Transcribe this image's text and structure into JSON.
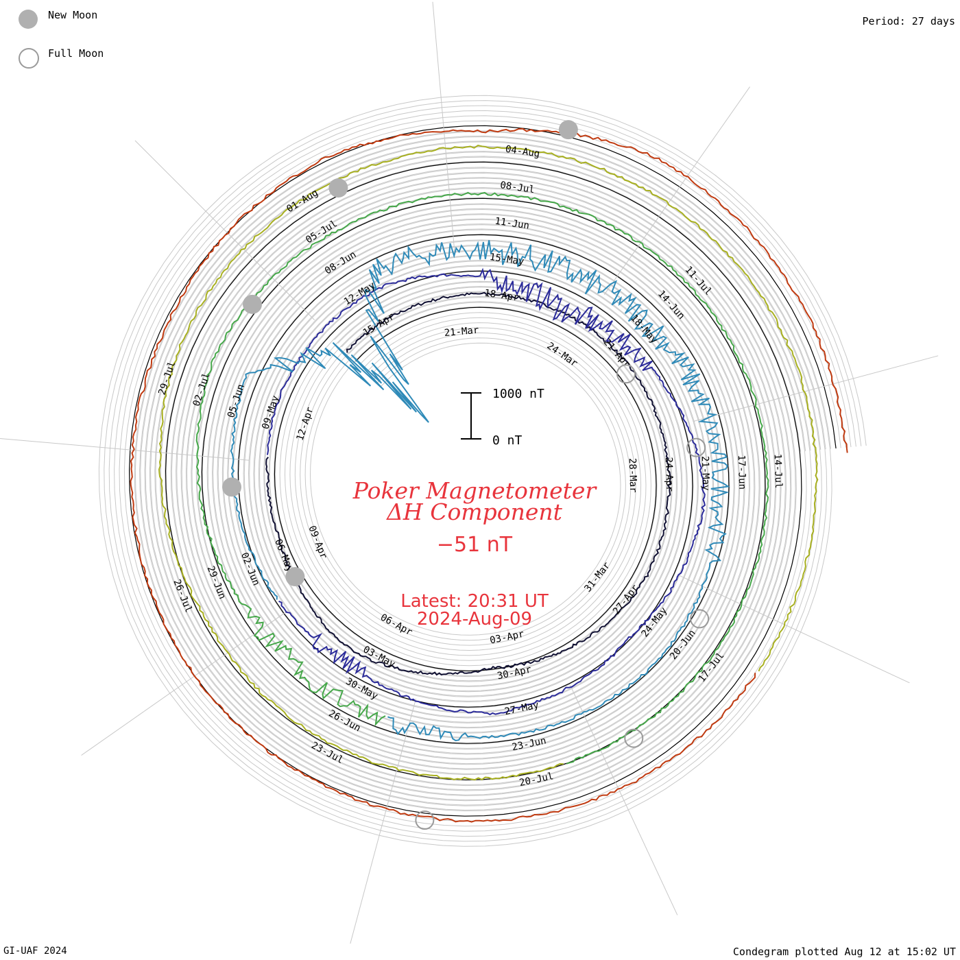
{
  "legend": {
    "new_moon_label": "New Moon",
    "full_moon_label": "Full Moon",
    "new_moon_color": "#b0b0b0",
    "full_moon_color": "#9a9a9a"
  },
  "period_label": "Period: 27 days",
  "footer_left": "GI-UAF 2024",
  "footer_right": "Condegram plotted Aug 12 at 15:02 UT",
  "scale_bar": {
    "top_label": "1000 nT",
    "bottom_label": "0 nT",
    "value_nT": 1000
  },
  "title": {
    "line1": "Poker Magnetometer",
    "line2": "ΔH Component",
    "value": "−51 nT",
    "latest_line1": "Latest: 20:31 UT",
    "latest_line2": "2024-Aug-09",
    "color": "#e8343c"
  },
  "chart_data": {
    "type": "line",
    "description_units": "nT",
    "period_days": 27,
    "start_date": "2024-03-18",
    "end_date": "2024-08-09",
    "series": [
      {
        "color": "#111133",
        "date_labels": [
          "21-Mar",
          "24-Mar",
          "28-Mar",
          "31-Mar",
          "03-Apr",
          "06-Apr",
          "09-Apr",
          "12-Apr"
        ],
        "values": [
          {
            "date": "2024-03-20",
            "dH": 20
          },
          {
            "date": "2024-03-24",
            "dH": 40
          },
          {
            "date": "2024-03-30",
            "dH": 0
          },
          {
            "date": "2024-04-01",
            "dH": -150
          },
          {
            "date": "2024-04-03",
            "dH": -300
          },
          {
            "date": "2024-04-06",
            "dH": 80
          },
          {
            "date": "2024-04-09",
            "dH": -150
          },
          {
            "date": "2024-04-12",
            "dH": -50
          }
        ]
      },
      {
        "color": "#2b2b9a",
        "date_labels": [
          "15-Apr",
          "18-Apr",
          "21-Apr",
          "24-Apr",
          "27-Apr",
          "30-Apr",
          "03-May",
          "06-May",
          "09-May"
        ],
        "values": [
          {
            "date": "2024-04-15",
            "dH": -100
          },
          {
            "date": "2024-04-19",
            "dH": -700
          },
          {
            "date": "2024-04-24",
            "dH": 0
          },
          {
            "date": "2024-04-27",
            "dH": -300
          },
          {
            "date": "2024-04-30",
            "dH": -100
          },
          {
            "date": "2024-05-03",
            "dH": -450
          },
          {
            "date": "2024-05-06",
            "dH": -250
          },
          {
            "date": "2024-05-09",
            "dH": 0
          }
        ]
      },
      {
        "color": "#2f8ab8",
        "date_labels": [
          "12-May",
          "15-May",
          "18-May",
          "21-May",
          "24-May",
          "27-May",
          "30-May",
          "02-Jun",
          "05-Jun"
        ],
        "values": [
          {
            "date": "2024-05-10",
            "dH": -1400
          },
          {
            "date": "2024-05-11",
            "dH": -2800
          },
          {
            "date": "2024-05-12",
            "dH": -500
          },
          {
            "date": "2024-05-16",
            "dH": -700
          },
          {
            "date": "2024-05-24",
            "dH": -300
          },
          {
            "date": "2024-05-31",
            "dH": -500
          },
          {
            "date": "2024-06-05",
            "dH": 0
          }
        ]
      },
      {
        "color": "#46a84a",
        "date_labels": [
          "08-Jun",
          "11-Jun",
          "14-Jun",
          "17-Jun",
          "20-Jun",
          "23-Jun",
          "26-Jun",
          "29-Jun",
          "02-Jul"
        ],
        "values": [
          {
            "date": "2024-06-08",
            "dH": -150
          },
          {
            "date": "2024-06-14",
            "dH": -200
          },
          {
            "date": "2024-06-20",
            "dH": -250
          },
          {
            "date": "2024-06-28",
            "dH": -350
          },
          {
            "date": "2024-07-02",
            "dH": 0
          }
        ]
      },
      {
        "color": "#a8b020",
        "date_labels": [
          "05-Jul",
          "08-Jul",
          "11-Jul",
          "14-Jul",
          "17-Jul",
          "20-Jul",
          "23-Jul",
          "26-Jul",
          "29-Jul"
        ],
        "values": [
          {
            "date": "2024-07-05",
            "dH": 50
          },
          {
            "date": "2024-07-12",
            "dH": 100
          },
          {
            "date": "2024-07-17",
            "dH": -50
          },
          {
            "date": "2024-07-23",
            "dH": -250
          },
          {
            "date": "2024-07-29",
            "dH": -350
          }
        ]
      },
      {
        "color": "#c03a10",
        "date_labels": [
          "01-Aug",
          "04-Aug"
        ],
        "values": [
          {
            "date": "2024-08-01",
            "dH": -200
          },
          {
            "date": "2024-08-03",
            "dH": -400
          },
          {
            "date": "2024-08-05",
            "dH": 0
          },
          {
            "date": "2024-08-09",
            "dH": -51
          }
        ]
      }
    ],
    "moon_phases": [
      {
        "phase": "full",
        "date": "2024-03-25"
      },
      {
        "phase": "new",
        "date": "2024-04-08"
      },
      {
        "phase": "full",
        "date": "2024-04-23"
      },
      {
        "phase": "new",
        "date": "2024-05-07"
      },
      {
        "phase": "full",
        "date": "2024-05-23"
      },
      {
        "phase": "new",
        "date": "2024-06-06"
      },
      {
        "phase": "full",
        "date": "2024-06-21"
      },
      {
        "phase": "new",
        "date": "2024-07-05"
      },
      {
        "phase": "full",
        "date": "2024-07-21"
      },
      {
        "phase": "new",
        "date": "2024-08-04"
      }
    ],
    "grid": true
  }
}
